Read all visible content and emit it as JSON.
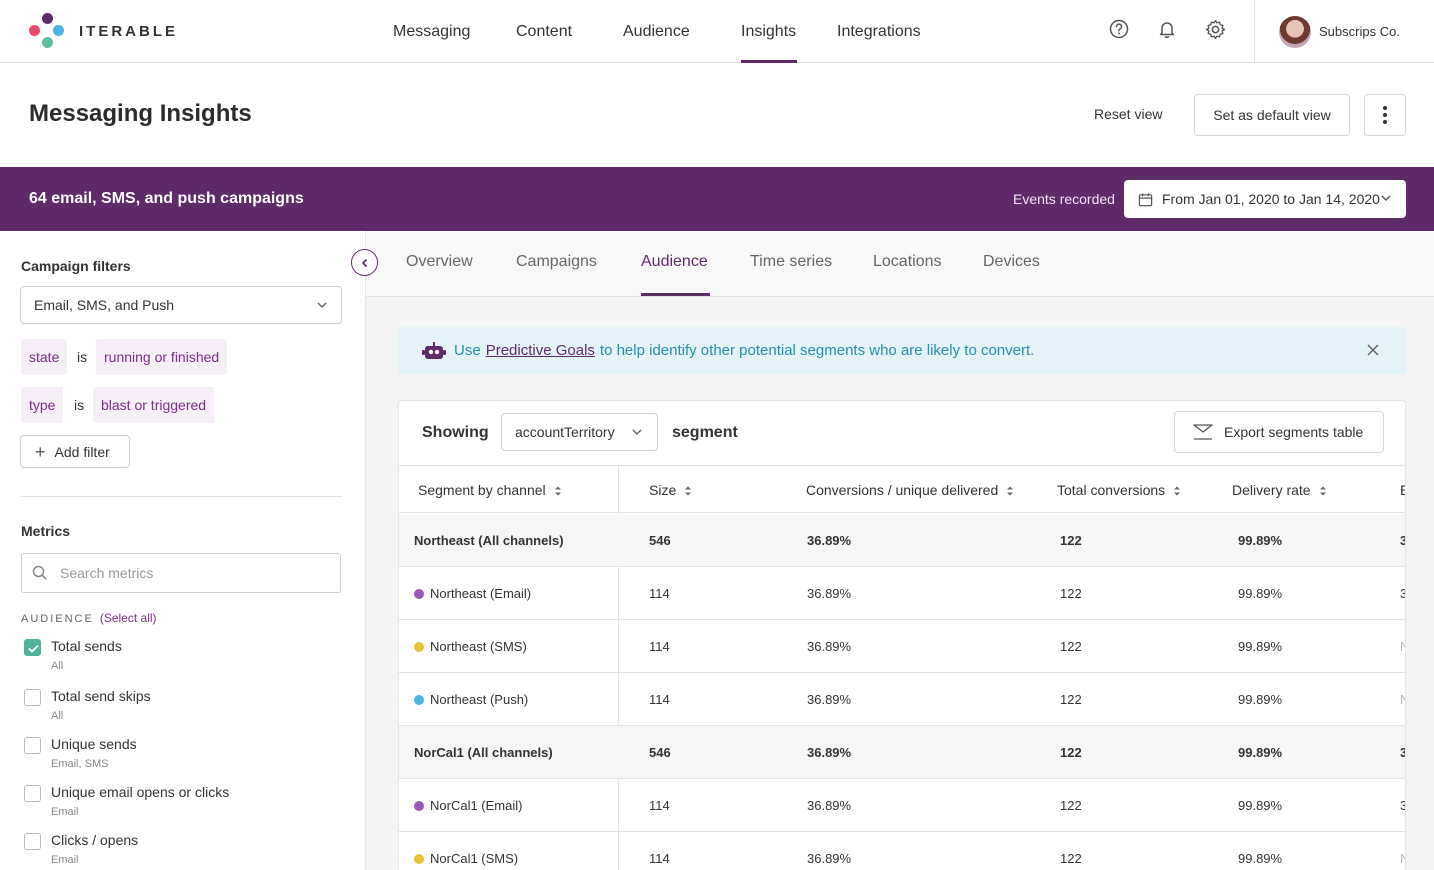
{
  "brand": {
    "name": "ITERABLE",
    "accent": "#5f2a68"
  },
  "nav": {
    "items": [
      "Messaging",
      "Content",
      "Audience",
      "Insights",
      "Integrations"
    ],
    "active": "Insights",
    "icons": [
      "help-icon",
      "bell-icon",
      "gear-icon"
    ],
    "account_name": "Subscrips Co."
  },
  "page": {
    "title": "Messaging Insights",
    "reset_label": "Reset view",
    "default_view_label": "Set as default view"
  },
  "banner": {
    "title": "64 email, SMS, and push campaigns",
    "events_label": "Events recorded",
    "date_range": "From Jan 01, 2020 to Jan 14, 2020"
  },
  "sidebar": {
    "filters_title": "Campaign filters",
    "channel_select": "Email, SMS, and Push",
    "filters": [
      {
        "field": "state",
        "op": "is",
        "value": "running or finished"
      },
      {
        "field": "type",
        "op": "is",
        "value": "blast or triggered"
      }
    ],
    "add_filter_label": "Add filter",
    "metrics_title": "Metrics",
    "search_placeholder": "Search metrics",
    "audience_heading": "AUDIENCE",
    "select_all": "(Select all)",
    "metrics": [
      {
        "label": "Total sends",
        "sub": "All",
        "checked": true
      },
      {
        "label": "Total send skips",
        "sub": "All",
        "checked": false
      },
      {
        "label": "Unique sends",
        "sub": "Email, SMS",
        "checked": false
      },
      {
        "label": "Unique email opens or clicks",
        "sub": "Email",
        "checked": false
      },
      {
        "label": "Clicks / opens",
        "sub": "Email",
        "checked": false
      }
    ]
  },
  "tabs": {
    "items": [
      "Overview",
      "Campaigns",
      "Audience",
      "Time series",
      "Locations",
      "Devices"
    ],
    "active": "Audience"
  },
  "notice": {
    "prefix": "Use",
    "link": "Predictive Goals",
    "suffix": "to help identify other potential segments who are likely to convert."
  },
  "table": {
    "showing_label": "Showing",
    "segment_select": "accountTerritory",
    "segment_word": "segment",
    "export_label": "Export segments table",
    "columns": [
      "Segment by channel",
      "Size",
      "Conversions / unique delivered",
      "Total conversions",
      "Delivery rate",
      "E"
    ],
    "channel_colors": {
      "Email": "#9b59b6",
      "SMS": "#e8c234",
      "Push": "#4db6e0"
    },
    "rows": [
      {
        "segment": "Northeast (All channels)",
        "channel": "",
        "bold": true,
        "size": "546",
        "conv": "36.89%",
        "total": "122",
        "delivery": "99.89%",
        "extra": "3"
      },
      {
        "segment": "Northeast (Email)",
        "channel": "Email",
        "bold": false,
        "size": "114",
        "conv": "36.89%",
        "total": "122",
        "delivery": "99.89%",
        "extra": "3"
      },
      {
        "segment": "Northeast (SMS)",
        "channel": "SMS",
        "bold": false,
        "size": "114",
        "conv": "36.89%",
        "total": "122",
        "delivery": "99.89%",
        "extra": "N"
      },
      {
        "segment": "Northeast (Push)",
        "channel": "Push",
        "bold": false,
        "size": "114",
        "conv": "36.89%",
        "total": "122",
        "delivery": "99.89%",
        "extra": "N"
      },
      {
        "segment": "NorCal1 (All channels)",
        "channel": "",
        "bold": true,
        "size": "546",
        "conv": "36.89%",
        "total": "122",
        "delivery": "99.89%",
        "extra": "3"
      },
      {
        "segment": "NorCal1 (Email)",
        "channel": "Email",
        "bold": false,
        "size": "114",
        "conv": "36.89%",
        "total": "122",
        "delivery": "99.89%",
        "extra": "3"
      },
      {
        "segment": "NorCal1 (SMS)",
        "channel": "SMS",
        "bold": false,
        "size": "114",
        "conv": "36.89%",
        "total": "122",
        "delivery": "99.89%",
        "extra": "N"
      }
    ]
  }
}
